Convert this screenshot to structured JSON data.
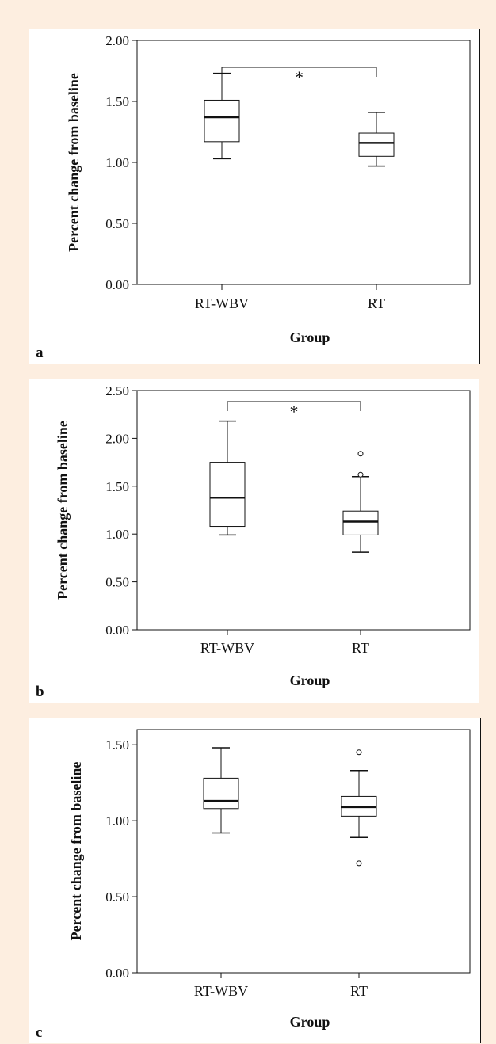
{
  "chart_data": [
    {
      "type": "boxplot",
      "panel_label": "a",
      "xlabel": "Group",
      "ylabel": "Percent change from baseline",
      "ylim": [
        0,
        2.0
      ],
      "yticks": [
        0,
        0.5,
        1.0,
        1.5,
        2.0
      ],
      "ytick_labels": [
        "0.00",
        "0.50",
        "1.00",
        "1.50",
        "2.00"
      ],
      "categories": [
        "RT-WBV",
        "RT"
      ],
      "boxes": [
        {
          "name": "RT-WBV",
          "whisker_low": 1.03,
          "q1": 1.17,
          "median": 1.37,
          "q3": 1.51,
          "whisker_high": 1.73,
          "outliers": []
        },
        {
          "name": "RT",
          "whisker_low": 0.97,
          "q1": 1.05,
          "median": 1.16,
          "q3": 1.24,
          "whisker_high": 1.41,
          "outliers": []
        }
      ],
      "significance": {
        "between": [
          "RT-WBV",
          "RT"
        ],
        "symbol": "*"
      }
    },
    {
      "type": "boxplot",
      "panel_label": "b",
      "xlabel": "Group",
      "ylabel": "Percent change from baseline",
      "ylim": [
        0,
        2.5
      ],
      "yticks": [
        0,
        0.5,
        1.0,
        1.5,
        2.0,
        2.5
      ],
      "ytick_labels": [
        "0.00",
        "0.50",
        "1.00",
        "1.50",
        "2.00",
        "2.50"
      ],
      "categories": [
        "RT-WBV",
        "RT"
      ],
      "boxes": [
        {
          "name": "RT-WBV",
          "whisker_low": 0.99,
          "q1": 1.08,
          "median": 1.38,
          "q3": 1.75,
          "whisker_high": 2.18,
          "outliers": []
        },
        {
          "name": "RT",
          "whisker_low": 0.81,
          "q1": 0.99,
          "median": 1.13,
          "q3": 1.24,
          "whisker_high": 1.6,
          "outliers": [
            1.62,
            1.84
          ]
        }
      ],
      "significance": {
        "between": [
          "RT-WBV",
          "RT"
        ],
        "symbol": "*"
      }
    },
    {
      "type": "boxplot",
      "panel_label": "c",
      "xlabel": "Group",
      "ylabel": "Percent change from baseline",
      "ylim": [
        0,
        1.6
      ],
      "yticks": [
        0,
        0.5,
        1.0,
        1.5
      ],
      "ytick_labels": [
        "0.00",
        "0.50",
        "1.00",
        "1.50"
      ],
      "categories": [
        "RT-WBV",
        "RT"
      ],
      "boxes": [
        {
          "name": "RT-WBV",
          "whisker_low": 0.92,
          "q1": 1.08,
          "median": 1.13,
          "q3": 1.28,
          "whisker_high": 1.48,
          "outliers": []
        },
        {
          "name": "RT",
          "whisker_low": 0.89,
          "q1": 1.03,
          "median": 1.09,
          "q3": 1.16,
          "whisker_high": 1.33,
          "outliers": [
            0.72,
            1.45
          ]
        }
      ],
      "significance": null
    }
  ]
}
